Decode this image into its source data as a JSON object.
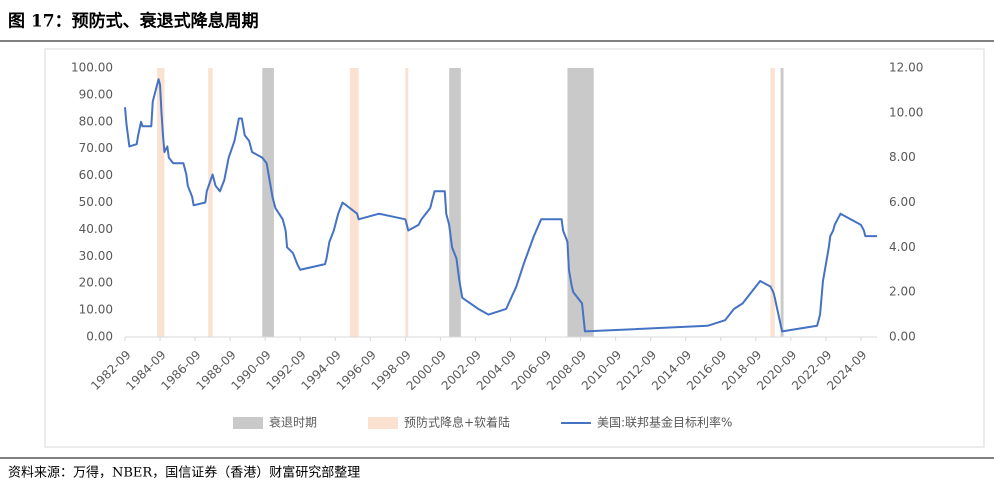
{
  "chart_data": {
    "type": "line",
    "title": "图 17：预防式、衰退式降息周期",
    "source": "资料来源：万得，NBER，国信证券（香港）财富研究部整理",
    "xlim": [
      "1982-09",
      "2025-08"
    ],
    "xticks": [
      "1982-09",
      "1984-09",
      "1986-09",
      "1988-09",
      "1990-09",
      "1992-09",
      "1994-09",
      "1996-09",
      "1998-09",
      "2000-09",
      "2002-09",
      "2004-09",
      "2006-09",
      "2008-09",
      "2010-09",
      "2012-09",
      "2014-09",
      "2016-09",
      "2018-09",
      "2020-09",
      "2022-09",
      "2024-09"
    ],
    "ylim": [
      0,
      100
    ],
    "yticks": [
      {
        "value": 0,
        "label": "0.00"
      },
      {
        "value": 10,
        "label": "10.00"
      },
      {
        "value": 20,
        "label": "20.00"
      },
      {
        "value": 30,
        "label": "30.00"
      },
      {
        "value": 40,
        "label": "40.00"
      },
      {
        "value": 50,
        "label": "50.00"
      },
      {
        "value": 60,
        "label": "60.00"
      },
      {
        "value": 70,
        "label": "70.00"
      },
      {
        "value": 80,
        "label": "80.00"
      },
      {
        "value": 90,
        "label": "90.00"
      },
      {
        "value": 100,
        "label": "100.00"
      }
    ],
    "y2lim": [
      0,
      12
    ],
    "y2ticks": [
      {
        "value": 0,
        "label": "0.00"
      },
      {
        "value": 2,
        "label": "2.00"
      },
      {
        "value": 4,
        "label": "4.00"
      },
      {
        "value": 6,
        "label": "6.00"
      },
      {
        "value": 8,
        "label": "8.00"
      },
      {
        "value": 10,
        "label": "10.00"
      },
      {
        "value": 12,
        "label": "12.00"
      }
    ],
    "grid": false,
    "legend": "bottom",
    "series": [
      {
        "name": "衰退时期",
        "type": "span",
        "color": "#c9c9c9",
        "start": [
          "1990-07",
          "2001-03",
          "2007-12",
          "2020-02"
        ],
        "end": [
          "1991-03",
          "2001-11",
          "2009-06",
          "2020-04"
        ],
        "values": [
          100,
          100,
          100,
          100
        ]
      },
      {
        "name": "预防式降息+软着陆",
        "type": "span",
        "color": "#fbe1cf",
        "start": [
          "1984-07",
          "1987-06",
          "1995-07",
          "1998-09",
          "2019-07"
        ],
        "end": [
          "1984-12",
          "1987-09",
          "1996-01",
          "1998-11",
          "2019-10"
        ],
        "values": [
          100,
          100,
          100,
          100,
          100
        ]
      },
      {
        "name": "美国:联邦基金目标利率%",
        "type": "line",
        "color": "#4472c4",
        "axis": "y2",
        "x": [
          "1982-09",
          "1982-10",
          "1982-11",
          "1982-12",
          "1983-05",
          "1983-06",
          "1983-08",
          "1983-09",
          "1984-03",
          "1984-04",
          "1984-06",
          "1984-08",
          "1984-09",
          "1984-10",
          "1984-11",
          "1984-12",
          "1985-02",
          "1985-03",
          "1985-06",
          "1985-10",
          "1986-01",
          "1986-03",
          "1986-04",
          "1986-07",
          "1986-08",
          "1987-04",
          "1987-05",
          "1987-09",
          "1987-11",
          "1988-02",
          "1988-05",
          "1988-08",
          "1988-12",
          "1989-03",
          "1989-05",
          "1989-07",
          "1989-10",
          "1989-12",
          "1990-07",
          "1990-10",
          "1990-12",
          "1991-02",
          "1991-04",
          "1991-09",
          "1991-11",
          "1991-12",
          "1992-04",
          "1992-07",
          "1992-09",
          "1994-02",
          "1994-03",
          "1994-05",
          "1994-08",
          "1994-11",
          "1995-02",
          "1995-07",
          "1995-12",
          "1996-01",
          "1997-03",
          "1998-09",
          "1998-10",
          "1998-11",
          "1999-06",
          "1999-08",
          "1999-11",
          "2000-02",
          "2000-03",
          "2000-05",
          "2000-12",
          "2001-01",
          "2001-03",
          "2001-05",
          "2001-08",
          "2001-09",
          "2001-10",
          "2001-12",
          "2002-11",
          "2003-06",
          "2004-06",
          "2005-01",
          "2005-06",
          "2006-01",
          "2006-06",
          "2007-08",
          "2007-09",
          "2007-12",
          "2008-01",
          "2008-03",
          "2008-04",
          "2008-10",
          "2008-12",
          "2015-12",
          "2016-12",
          "2017-06",
          "2017-12",
          "2018-06",
          "2018-12",
          "2019-07",
          "2019-09",
          "2019-10",
          "2020-03",
          "2022-03",
          "2022-05",
          "2022-06",
          "2022-07",
          "2022-09",
          "2022-11",
          "2022-12",
          "2023-02",
          "2023-03",
          "2023-05",
          "2023-07",
          "2024-09",
          "2024-11",
          "2024-12",
          "2025-08"
        ],
        "values": [
          10.25,
          9.5,
          9.0,
          8.5,
          8.6,
          9.0,
          9.6,
          9.4,
          9.4,
          10.5,
          11.0,
          11.5,
          11.25,
          10.0,
          9.0,
          8.25,
          8.5,
          8.0,
          7.75,
          7.75,
          7.75,
          7.25,
          6.75,
          6.25,
          5.875,
          6.0,
          6.5,
          7.25,
          6.75,
          6.5,
          7.0,
          8.0,
          8.75,
          9.75,
          9.75,
          9.0,
          8.75,
          8.25,
          8.0,
          7.75,
          7.0,
          6.25,
          5.75,
          5.25,
          4.75,
          4.0,
          3.75,
          3.25,
          3.0,
          3.25,
          3.5,
          4.25,
          4.75,
          5.5,
          6.0,
          5.75,
          5.5,
          5.25,
          5.5,
          5.25,
          5.0,
          4.75,
          5.0,
          5.25,
          5.5,
          5.75,
          6.0,
          6.5,
          6.5,
          5.5,
          5.0,
          4.0,
          3.5,
          3.0,
          2.5,
          1.75,
          1.25,
          1.0,
          1.25,
          2.25,
          3.25,
          4.5,
          5.25,
          5.25,
          4.75,
          4.25,
          3.0,
          2.25,
          2.0,
          1.5,
          0.25,
          0.5,
          0.75,
          1.25,
          1.5,
          2.0,
          2.5,
          2.25,
          2.0,
          1.75,
          0.25,
          0.5,
          1.0,
          1.75,
          2.5,
          3.25,
          4.0,
          4.5,
          4.75,
          5.0,
          5.25,
          5.5,
          5.0,
          4.75,
          4.5,
          4.5
        ]
      }
    ]
  }
}
